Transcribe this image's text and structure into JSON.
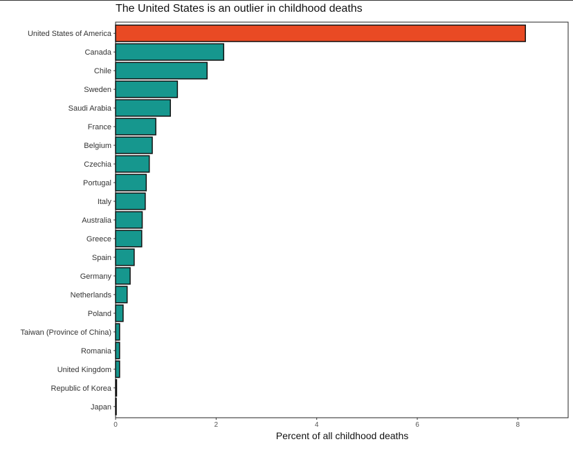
{
  "chart_data": {
    "type": "bar",
    "orientation": "horizontal",
    "title": "The United States is an outlier in childhood deaths",
    "xlabel": "Percent of all childhood deaths",
    "ylabel": "",
    "xlim": [
      0,
      9
    ],
    "x_ticks": [
      "0",
      "2",
      "4",
      "6",
      "8"
    ],
    "grid": false,
    "highlight_color": "#e94a24",
    "bar_color": "#16978e",
    "categories": [
      "United States of America",
      "Canada",
      "Chile",
      "Sweden",
      "Saudi Arabia",
      "France",
      "Belgium",
      "Czechia",
      "Portugal",
      "Italy",
      "Australia",
      "Greece",
      "Spain",
      "Germany",
      "Netherlands",
      "Poland",
      "Taiwan (Province of China)",
      "Romania",
      "United Kingdom",
      "Republic of Korea",
      "Japan"
    ],
    "values": [
      8.15,
      2.15,
      1.82,
      1.23,
      1.09,
      0.8,
      0.73,
      0.67,
      0.61,
      0.59,
      0.53,
      0.52,
      0.37,
      0.29,
      0.23,
      0.15,
      0.08,
      0.08,
      0.08,
      0.02,
      0.01
    ],
    "highlight": [
      "United States of America"
    ]
  }
}
